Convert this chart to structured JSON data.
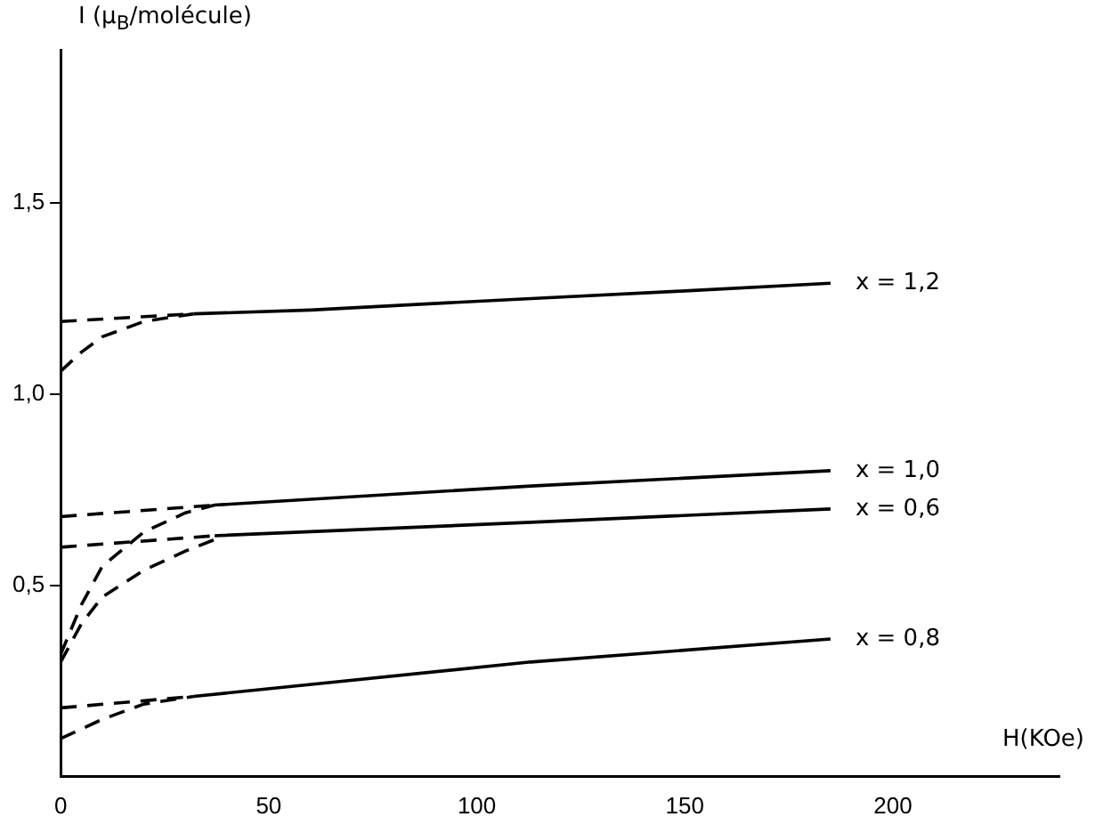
{
  "chart_data": {
    "type": "line",
    "xlabel": "H(KOe)",
    "ylabel": "I (μ$_{B}$/molécule)",
    "xlim": [
      0,
      240
    ],
    "ylim": [
      0,
      1.9
    ],
    "xticks": [
      0,
      50,
      100,
      150,
      200
    ],
    "yticks": [
      {
        "value": 0.5,
        "label": "0,5"
      },
      {
        "value": 1.0,
        "label": "1,0"
      },
      {
        "value": 1.5,
        "label": "1,5"
      }
    ],
    "tick_labels": true,
    "grid": false,
    "legend": false,
    "marker": "none",
    "series": [
      {
        "name": "x = 1,2",
        "color": "#000000",
        "line_style": "solid",
        "x": [
          32,
          60,
          113,
          150,
          185
        ],
        "values": [
          1.21,
          1.22,
          1.25,
          1.27,
          1.29
        ]
      },
      {
        "color": "#000000",
        "line_style": "dashed",
        "x": [
          0,
          32
        ],
        "values": [
          1.19,
          1.21
        ]
      },
      {
        "color": "#000000",
        "line_style": "dashed",
        "x": [
          0,
          5,
          10,
          20,
          32
        ],
        "values": [
          1.06,
          1.11,
          1.15,
          1.19,
          1.21
        ]
      },
      {
        "name": "x = 1,0",
        "color": "#000000",
        "line_style": "solid",
        "x": [
          37,
          113,
          185
        ],
        "values": [
          0.71,
          0.76,
          0.8
        ]
      },
      {
        "color": "#000000",
        "line_style": "dashed",
        "x": [
          0,
          37
        ],
        "values": [
          0.68,
          0.71
        ]
      },
      {
        "color": "#000000",
        "line_style": "dashed",
        "x": [
          0,
          5,
          10,
          20,
          30,
          37
        ],
        "values": [
          0.32,
          0.45,
          0.55,
          0.64,
          0.69,
          0.71
        ]
      },
      {
        "name": "x = 0,6",
        "color": "#000000",
        "line_style": "solid",
        "x": [
          37,
          113,
          185
        ],
        "values": [
          0.63,
          0.665,
          0.7
        ]
      },
      {
        "color": "#000000",
        "line_style": "dashed",
        "x": [
          0,
          37
        ],
        "values": [
          0.6,
          0.63
        ]
      },
      {
        "color": "#000000",
        "line_style": "dashed",
        "x": [
          0,
          5,
          10,
          20,
          30,
          37
        ],
        "values": [
          0.3,
          0.4,
          0.47,
          0.54,
          0.59,
          0.62
        ]
      },
      {
        "name": "x = 0,8",
        "color": "#000000",
        "line_style": "solid",
        "x": [
          32,
          113,
          185
        ],
        "values": [
          0.21,
          0.3,
          0.36
        ]
      },
      {
        "color": "#000000",
        "line_style": "dashed",
        "x": [
          0,
          32
        ],
        "values": [
          0.18,
          0.21
        ]
      },
      {
        "color": "#000000",
        "line_style": "dashed",
        "x": [
          0,
          10,
          20,
          32
        ],
        "values": [
          0.1,
          0.15,
          0.19,
          0.21
        ]
      }
    ]
  }
}
